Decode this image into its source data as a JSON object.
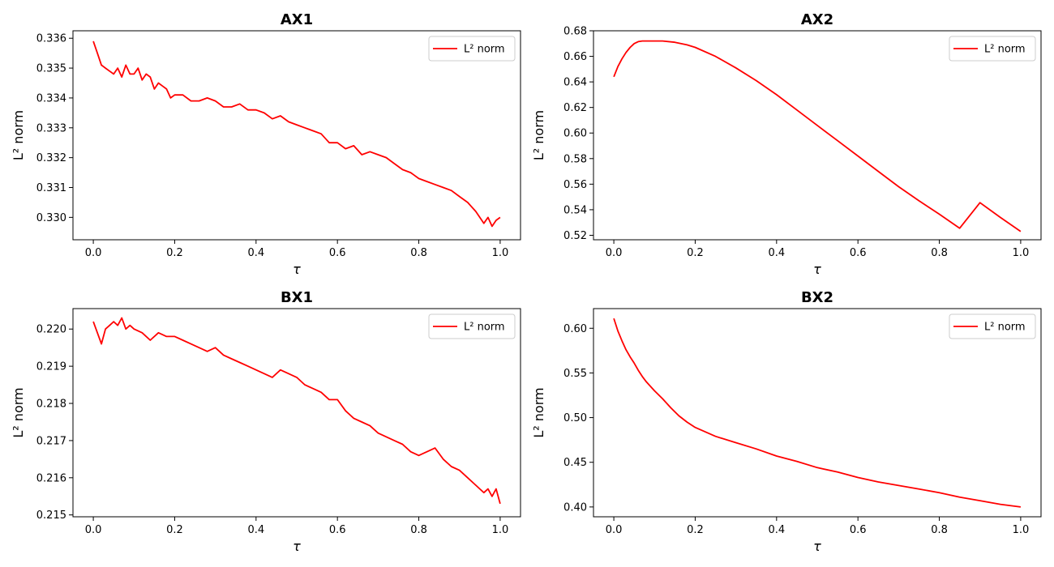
{
  "chart_data": [
    {
      "type": "line",
      "title": "AX1",
      "xlabel": "τ",
      "ylabel": "L² norm",
      "xlim": [
        -0.05,
        1.05
      ],
      "ylim": [
        0.32925,
        0.33625
      ],
      "xticks": [
        0.0,
        0.2,
        0.4,
        0.6,
        0.8,
        1.0
      ],
      "xtick_labels": [
        "0.0",
        "0.2",
        "0.4",
        "0.6",
        "0.8",
        "1.0"
      ],
      "yticks": [
        0.33,
        0.331,
        0.332,
        0.333,
        0.334,
        0.335,
        0.336
      ],
      "ytick_labels": [
        "0.330",
        "0.331",
        "0.332",
        "0.333",
        "0.334",
        "0.335",
        "0.336"
      ],
      "legend_position": "top-right",
      "series": [
        {
          "name": "L² norm",
          "color": "#ff0000",
          "x": [
            0.0,
            0.01,
            0.02,
            0.03,
            0.04,
            0.05,
            0.06,
            0.07,
            0.08,
            0.09,
            0.1,
            0.11,
            0.12,
            0.13,
            0.14,
            0.15,
            0.16,
            0.17,
            0.18,
            0.19,
            0.2,
            0.22,
            0.24,
            0.26,
            0.28,
            0.3,
            0.32,
            0.34,
            0.36,
            0.38,
            0.4,
            0.42,
            0.44,
            0.46,
            0.48,
            0.5,
            0.52,
            0.54,
            0.56,
            0.58,
            0.6,
            0.62,
            0.64,
            0.66,
            0.68,
            0.7,
            0.72,
            0.74,
            0.76,
            0.78,
            0.8,
            0.82,
            0.84,
            0.86,
            0.88,
            0.9,
            0.92,
            0.94,
            0.95,
            0.96,
            0.97,
            0.98,
            0.99,
            1.0
          ],
          "y": [
            0.3359,
            0.3355,
            0.3351,
            0.335,
            0.3349,
            0.3348,
            0.335,
            0.3347,
            0.3351,
            0.3348,
            0.3348,
            0.335,
            0.3346,
            0.3348,
            0.3347,
            0.3343,
            0.3345,
            0.3344,
            0.3343,
            0.334,
            0.3341,
            0.3341,
            0.3339,
            0.3339,
            0.334,
            0.3339,
            0.3337,
            0.3337,
            0.3338,
            0.3336,
            0.3336,
            0.3335,
            0.3333,
            0.3334,
            0.3332,
            0.3331,
            0.333,
            0.3329,
            0.3328,
            0.3325,
            0.3325,
            0.3323,
            0.3324,
            0.3321,
            0.3322,
            0.3321,
            0.332,
            0.3318,
            0.3316,
            0.3315,
            0.3313,
            0.3312,
            0.3311,
            0.331,
            0.3309,
            0.3307,
            0.3305,
            0.3302,
            0.33,
            0.3298,
            0.33,
            0.3297,
            0.3299,
            0.33
          ]
        }
      ]
    },
    {
      "type": "line",
      "title": "AX2",
      "xlabel": "τ",
      "ylabel": "L² norm",
      "xlim": [
        -0.05,
        1.05
      ],
      "ylim": [
        0.5165,
        0.68
      ],
      "xticks": [
        0.0,
        0.2,
        0.4,
        0.6,
        0.8,
        1.0
      ],
      "xtick_labels": [
        "0.0",
        "0.2",
        "0.4",
        "0.6",
        "0.8",
        "1.0"
      ],
      "yticks": [
        0.52,
        0.54,
        0.56,
        0.58,
        0.6,
        0.62,
        0.64,
        0.66,
        0.68
      ],
      "ytick_labels": [
        "0.52",
        "0.54",
        "0.56",
        "0.58",
        "0.60",
        "0.62",
        "0.64",
        "0.66",
        "0.68"
      ],
      "legend_position": "top-right",
      "series": [
        {
          "name": "L² norm",
          "color": "#ff0000",
          "x": [
            0.0,
            0.01,
            0.02,
            0.03,
            0.04,
            0.05,
            0.06,
            0.07,
            0.08,
            0.1,
            0.12,
            0.15,
            0.18,
            0.2,
            0.25,
            0.3,
            0.35,
            0.4,
            0.45,
            0.5,
            0.55,
            0.6,
            0.65,
            0.7,
            0.75,
            0.8,
            0.85,
            0.9,
            0.95,
            1.0
          ],
          "y": [
            0.644,
            0.652,
            0.658,
            0.663,
            0.667,
            0.67,
            0.6715,
            0.672,
            0.672,
            0.672,
            0.672,
            0.671,
            0.669,
            0.667,
            0.66,
            0.651,
            0.641,
            0.63,
            0.618,
            0.606,
            0.594,
            0.582,
            0.57,
            0.558,
            0.547,
            0.5365,
            0.5255,
            0.5455,
            0.534,
            0.523
          ]
        }
      ]
    },
    {
      "type": "line",
      "title": "BX1",
      "xlabel": "τ",
      "ylabel": "L² norm",
      "xlim": [
        -0.05,
        1.05
      ],
      "ylim": [
        0.21495,
        0.22055
      ],
      "xticks": [
        0.0,
        0.2,
        0.4,
        0.6,
        0.8,
        1.0
      ],
      "xtick_labels": [
        "0.0",
        "0.2",
        "0.4",
        "0.6",
        "0.8",
        "1.0"
      ],
      "yticks": [
        0.215,
        0.216,
        0.217,
        0.218,
        0.219,
        0.22
      ],
      "ytick_labels": [
        "0.215",
        "0.216",
        "0.217",
        "0.218",
        "0.219",
        "0.220"
      ],
      "legend_position": "top-right",
      "series": [
        {
          "name": "L² norm",
          "color": "#ff0000",
          "x": [
            0.0,
            0.01,
            0.02,
            0.03,
            0.04,
            0.05,
            0.06,
            0.07,
            0.08,
            0.09,
            0.1,
            0.12,
            0.14,
            0.16,
            0.18,
            0.2,
            0.22,
            0.24,
            0.26,
            0.28,
            0.3,
            0.32,
            0.34,
            0.36,
            0.38,
            0.4,
            0.42,
            0.44,
            0.46,
            0.48,
            0.5,
            0.52,
            0.54,
            0.56,
            0.58,
            0.6,
            0.62,
            0.64,
            0.66,
            0.68,
            0.7,
            0.72,
            0.74,
            0.76,
            0.78,
            0.8,
            0.82,
            0.84,
            0.86,
            0.88,
            0.9,
            0.92,
            0.94,
            0.95,
            0.96,
            0.97,
            0.98,
            0.99,
            1.0
          ],
          "y": [
            0.2202,
            0.2199,
            0.2196,
            0.22,
            0.2201,
            0.2202,
            0.2201,
            0.2203,
            0.22,
            0.2201,
            0.22,
            0.2199,
            0.2197,
            0.2199,
            0.2198,
            0.2198,
            0.2197,
            0.2196,
            0.2195,
            0.2194,
            0.2195,
            0.2193,
            0.2192,
            0.2191,
            0.219,
            0.2189,
            0.2188,
            0.2187,
            0.2189,
            0.2188,
            0.2187,
            0.2185,
            0.2184,
            0.2183,
            0.2181,
            0.2181,
            0.2178,
            0.2176,
            0.2175,
            0.2174,
            0.2172,
            0.2171,
            0.217,
            0.2169,
            0.2167,
            0.2166,
            0.2167,
            0.2168,
            0.2165,
            0.2163,
            0.2162,
            0.216,
            0.2158,
            0.2157,
            0.2156,
            0.2157,
            0.2155,
            0.2157,
            0.2153
          ]
        }
      ]
    },
    {
      "type": "line",
      "title": "BX2",
      "xlabel": "τ",
      "ylabel": "L² norm",
      "xlim": [
        -0.05,
        1.05
      ],
      "ylim": [
        0.389,
        0.622
      ],
      "xticks": [
        0.0,
        0.2,
        0.4,
        0.6,
        0.8,
        1.0
      ],
      "xtick_labels": [
        "0.0",
        "0.2",
        "0.4",
        "0.6",
        "0.8",
        "1.0"
      ],
      "yticks": [
        0.4,
        0.45,
        0.5,
        0.55,
        0.6
      ],
      "ytick_labels": [
        "0.40",
        "0.45",
        "0.50",
        "0.55",
        "0.60"
      ],
      "legend_position": "top-right",
      "series": [
        {
          "name": "L² norm",
          "color": "#ff0000",
          "x": [
            0.0,
            0.01,
            0.02,
            0.03,
            0.04,
            0.05,
            0.06,
            0.07,
            0.08,
            0.1,
            0.12,
            0.14,
            0.16,
            0.18,
            0.2,
            0.25,
            0.3,
            0.35,
            0.4,
            0.45,
            0.5,
            0.55,
            0.6,
            0.65,
            0.7,
            0.75,
            0.8,
            0.85,
            0.9,
            0.95,
            1.0
          ],
          "y": [
            0.611,
            0.597,
            0.586,
            0.576,
            0.568,
            0.561,
            0.553,
            0.546,
            0.54,
            0.53,
            0.521,
            0.511,
            0.502,
            0.495,
            0.489,
            0.479,
            0.472,
            0.465,
            0.457,
            0.451,
            0.444,
            0.439,
            0.433,
            0.428,
            0.424,
            0.42,
            0.416,
            0.411,
            0.407,
            0.403,
            0.4
          ]
        }
      ]
    }
  ]
}
